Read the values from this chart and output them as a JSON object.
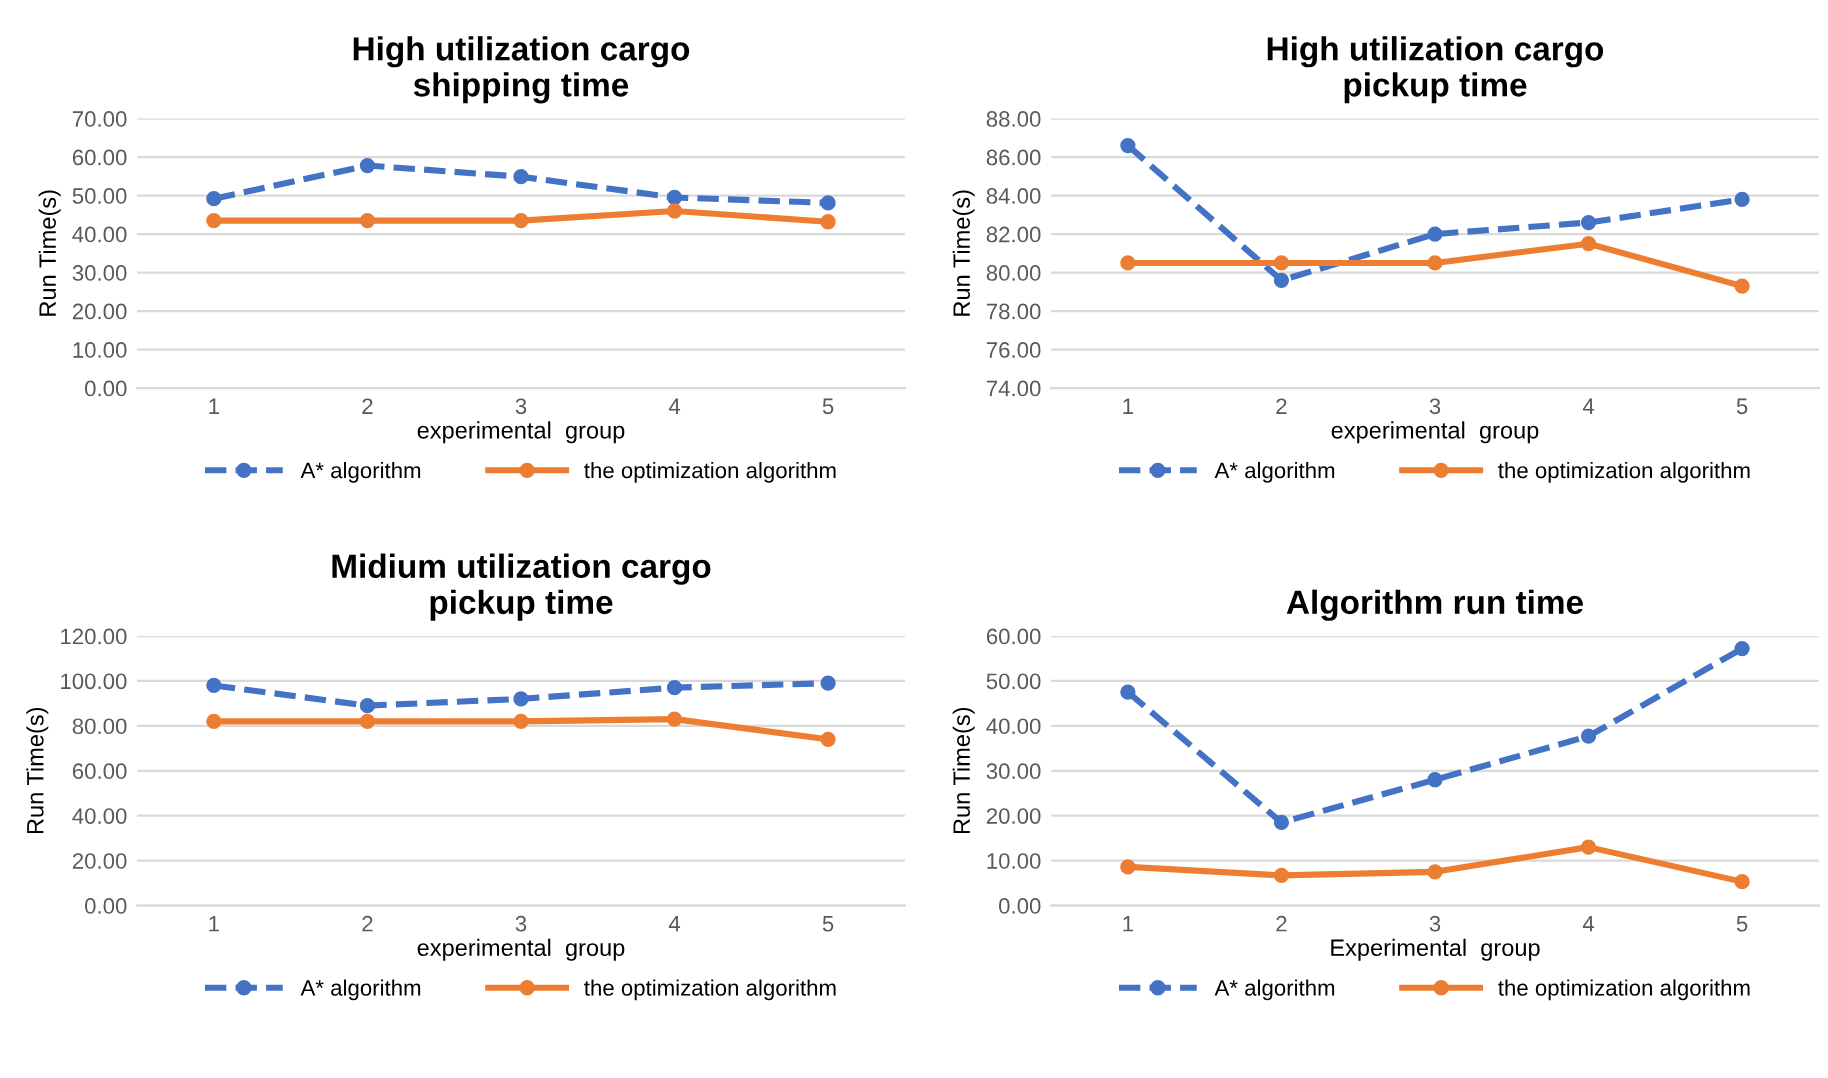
{
  "chart_data": [
    {
      "type": "line",
      "title": "High utilization cargo\nshipping time",
      "xlabel": "experimental  group",
      "ylabel": "Run Time(s)",
      "categories": [
        "1",
        "2",
        "3",
        "4",
        "5"
      ],
      "ylim": [
        0,
        70
      ],
      "yticks": [
        {
          "value": 0,
          "label": "0.00"
        },
        {
          "value": 10,
          "label": "10.00"
        },
        {
          "value": 20,
          "label": "20.00"
        },
        {
          "value": 30,
          "label": "30.00"
        },
        {
          "value": 40,
          "label": "40.00"
        },
        {
          "value": 50,
          "label": "50.00"
        },
        {
          "value": 60,
          "label": "60.00"
        },
        {
          "value": 70,
          "label": "70.00"
        }
      ],
      "grid": "y",
      "legend": "bottom",
      "marker": "circle",
      "series": [
        {
          "name": "A* algorithm",
          "color": "#4472c4",
          "line_style": "dashed",
          "values": [
            49.2,
            57.8,
            54.9,
            49.5,
            48.1
          ]
        },
        {
          "name": "the optimization algorithm",
          "color": "#ed7d31",
          "line_style": "solid",
          "values": [
            43.5,
            43.5,
            43.5,
            46.0,
            43.2
          ]
        }
      ]
    },
    {
      "type": "line",
      "title": "High utilization cargo\npickup time",
      "xlabel": "experimental  group",
      "ylabel": "Run Time(s)",
      "categories": [
        "1",
        "2",
        "3",
        "4",
        "5"
      ],
      "ylim": [
        74,
        88
      ],
      "yticks": [
        {
          "value": 74,
          "label": "74.00"
        },
        {
          "value": 76,
          "label": "76.00"
        },
        {
          "value": 78,
          "label": "78.00"
        },
        {
          "value": 80,
          "label": "80.00"
        },
        {
          "value": 82,
          "label": "82.00"
        },
        {
          "value": 84,
          "label": "84.00"
        },
        {
          "value": 86,
          "label": "86.00"
        },
        {
          "value": 88,
          "label": "88.00"
        }
      ],
      "grid": "y",
      "legend": "bottom",
      "marker": "circle",
      "series": [
        {
          "name": "A* algorithm",
          "color": "#4472c4",
          "line_style": "dashed",
          "values": [
            86.6,
            79.6,
            82.0,
            82.6,
            83.8
          ]
        },
        {
          "name": "the optimization algorithm",
          "color": "#ed7d31",
          "line_style": "solid",
          "values": [
            80.5,
            80.5,
            80.5,
            81.5,
            79.3
          ]
        }
      ]
    },
    {
      "type": "line",
      "title": "Midium utilization cargo\npickup time",
      "xlabel": "experimental  group",
      "ylabel": "Run Time(s)",
      "categories": [
        "1",
        "2",
        "3",
        "4",
        "5"
      ],
      "ylim": [
        0,
        120
      ],
      "yticks": [
        {
          "value": 0,
          "label": "0.00"
        },
        {
          "value": 20,
          "label": "20.00"
        },
        {
          "value": 40,
          "label": "40.00"
        },
        {
          "value": 60,
          "label": "60.00"
        },
        {
          "value": 80,
          "label": "80.00"
        },
        {
          "value": 100,
          "label": "100.00"
        },
        {
          "value": 120,
          "label": "120.00"
        }
      ],
      "grid": "y",
      "legend": "bottom",
      "marker": "circle",
      "series": [
        {
          "name": "A* algorithm",
          "color": "#4472c4",
          "line_style": "dashed",
          "values": [
            98,
            89,
            92,
            97,
            99
          ]
        },
        {
          "name": "the optimization algorithm",
          "color": "#ed7d31",
          "line_style": "solid",
          "values": [
            82,
            82,
            82,
            83,
            74
          ]
        }
      ]
    },
    {
      "type": "line",
      "title": "Algorithm run time",
      "xlabel": "Experimental  group",
      "ylabel": "Run Time(s)",
      "categories": [
        "1",
        "2",
        "3",
        "4",
        "5"
      ],
      "ylim": [
        0,
        60
      ],
      "yticks": [
        {
          "value": 0,
          "label": "0.00"
        },
        {
          "value": 10,
          "label": "10.00"
        },
        {
          "value": 20,
          "label": "20.00"
        },
        {
          "value": 30,
          "label": "30.00"
        },
        {
          "value": 40,
          "label": "40.00"
        },
        {
          "value": 50,
          "label": "50.00"
        },
        {
          "value": 60,
          "label": "60.00"
        }
      ],
      "grid": "y",
      "legend": "bottom",
      "marker": "circle",
      "series": [
        {
          "name": "A* algorithm",
          "color": "#4472c4",
          "line_style": "dashed",
          "values": [
            47.5,
            18.5,
            28.0,
            37.7,
            57.2
          ]
        },
        {
          "name": "the optimization algorithm",
          "color": "#ed7d31",
          "line_style": "solid",
          "values": [
            8.6,
            6.7,
            7.5,
            13.0,
            5.3
          ]
        }
      ]
    }
  ]
}
